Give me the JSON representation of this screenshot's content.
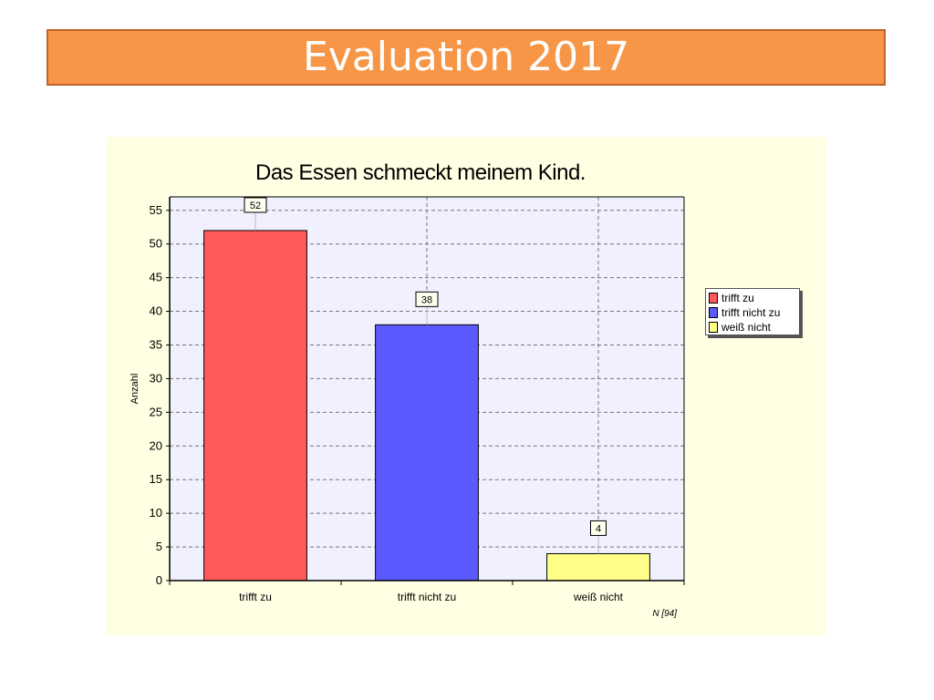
{
  "slide": {
    "title": "Evaluation 2017"
  },
  "chart_data": {
    "type": "bar",
    "title": "Das Essen schmeckt meinem Kind.",
    "ylabel": "Anzahl",
    "xlabel": "",
    "categories": [
      "trifft zu",
      "trifft nicht zu",
      "weiß nicht"
    ],
    "values": [
      52,
      38,
      4
    ],
    "data_labels": [
      "52",
      "38",
      "4"
    ],
    "colors": [
      "#ff5a5a",
      "#5a5aff",
      "#ffff88"
    ],
    "ylim": [
      0,
      57
    ],
    "yticks": [
      0,
      5,
      10,
      15,
      20,
      25,
      30,
      35,
      40,
      45,
      50,
      55
    ],
    "grid": true,
    "legend_position": "right",
    "legend": [
      "trifft zu",
      "trifft nicht zu",
      "weiß nicht"
    ],
    "footnote": "N [94]",
    "background": "#ffffe3",
    "plot_background": "#f0f0ff"
  }
}
